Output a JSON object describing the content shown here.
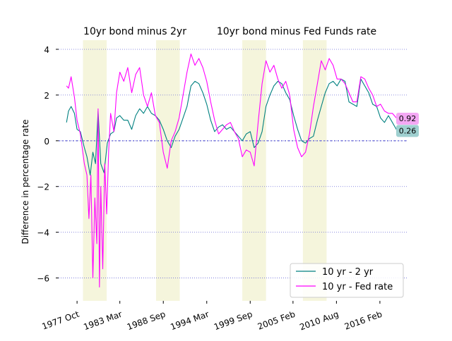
{
  "chart_data": {
    "type": "line",
    "title_left": "10yr bond minus 2yr",
    "title_right": "10yr bond minus Fed Funds rate",
    "xlabel": "",
    "ylabel": "Difference in percentage rate",
    "xlim": [
      "1975-06",
      "2019-09"
    ],
    "ylim": [
      -7,
      4.4
    ],
    "grid": "horizontal dotted",
    "legend_placement": "lower-right",
    "x_ticks": [
      "1977-10",
      "1983-03",
      "1988-09",
      "1994-03",
      "1999-09",
      "2005-02",
      "2010-08",
      "2016-02"
    ],
    "x_tick_labels": [
      "1977 Oct",
      "1983 Mar",
      "1988 Sep",
      "1994 Mar",
      "1999 Sep",
      "2005 Feb",
      "2010 Aug",
      "2016 Feb"
    ],
    "y_ticks": [
      4,
      2,
      0,
      -2,
      -4,
      -6
    ],
    "y_tick_labels": [
      "4",
      "2",
      "0",
      "−2",
      "−4",
      "−6"
    ],
    "shaded_periods": [
      [
        "1978-07",
        "1981-07"
      ],
      [
        "1987-10",
        "1990-10"
      ],
      [
        "1998-09",
        "2001-09"
      ],
      [
        "2006-05",
        "2009-05"
      ]
    ],
    "zero_line": 0,
    "colors": {
      "s1": "#008080",
      "s2": "#ff00ff",
      "shade": "#f5f5dc",
      "grid": "#6a6ad6"
    },
    "series": [
      {
        "name": "10 yr - 2 yr",
        "color": "#008080",
        "x": [
          "1976-06",
          "1976-09",
          "1977-01",
          "1977-06",
          "1977-10",
          "1978-03",
          "1978-09",
          "1979-01",
          "1979-06",
          "1979-10",
          "1980-02",
          "1980-06",
          "1980-10",
          "1981-03",
          "1981-08",
          "1982-01",
          "1982-06",
          "1982-10",
          "1983-03",
          "1983-09",
          "1984-03",
          "1984-09",
          "1985-03",
          "1985-09",
          "1986-03",
          "1986-09",
          "1987-03",
          "1987-09",
          "1988-03",
          "1988-09",
          "1989-03",
          "1989-09",
          "1990-03",
          "1990-09",
          "1991-03",
          "1991-09",
          "1992-03",
          "1992-09",
          "1993-03",
          "1993-09",
          "1994-03",
          "1994-09",
          "1995-03",
          "1995-09",
          "1996-03",
          "1996-09",
          "1997-03",
          "1997-09",
          "1998-03",
          "1998-09",
          "1999-03",
          "1999-09",
          "2000-03",
          "2000-09",
          "2001-03",
          "2001-09",
          "2002-03",
          "2002-09",
          "2003-03",
          "2003-09",
          "2004-03",
          "2004-09",
          "2005-03",
          "2005-09",
          "2006-03",
          "2006-09",
          "2007-03",
          "2007-09",
          "2008-03",
          "2008-09",
          "2009-03",
          "2009-09",
          "2010-03",
          "2010-09",
          "2011-03",
          "2011-09",
          "2012-03",
          "2012-09",
          "2013-03",
          "2013-09",
          "2014-03",
          "2014-09",
          "2015-03",
          "2015-09",
          "2016-03",
          "2016-09",
          "2017-03",
          "2017-09",
          "2018-03",
          "2018-06"
        ],
        "values": [
          0.8,
          1.3,
          1.5,
          1.2,
          0.5,
          0.4,
          -0.3,
          -0.7,
          -1.5,
          -0.5,
          -1.0,
          1.3,
          -1.0,
          -1.4,
          -0.1,
          0.3,
          0.4,
          1.0,
          1.1,
          0.9,
          0.9,
          0.5,
          1.1,
          1.4,
          1.2,
          1.5,
          1.2,
          1.1,
          0.9,
          0.5,
          0.0,
          -0.3,
          0.2,
          0.5,
          1.0,
          1.5,
          2.4,
          2.6,
          2.5,
          2.1,
          1.6,
          0.9,
          0.4,
          0.6,
          0.7,
          0.5,
          0.6,
          0.4,
          0.2,
          0.0,
          0.3,
          0.4,
          -0.3,
          -0.1,
          0.4,
          1.5,
          2.0,
          2.4,
          2.6,
          2.5,
          2.1,
          1.8,
          1.1,
          0.5,
          0.0,
          -0.1,
          0.1,
          0.2,
          0.9,
          1.5,
          2.1,
          2.5,
          2.6,
          2.4,
          2.7,
          2.6,
          1.7,
          1.6,
          1.5,
          2.7,
          2.4,
          2.1,
          1.6,
          1.5,
          1.0,
          0.8,
          1.1,
          0.8,
          0.5,
          0.26
        ]
      },
      {
        "name": "10 yr - Fed rate",
        "color": "#ff00ff",
        "x": [
          "1976-06",
          "1976-09",
          "1977-01",
          "1977-06",
          "1977-10",
          "1978-03",
          "1978-09",
          "1979-01",
          "1979-04",
          "1979-07",
          "1979-10",
          "1980-01",
          "1980-04",
          "1980-06",
          "1980-08",
          "1980-10",
          "1981-01",
          "1981-04",
          "1981-07",
          "1981-10",
          "1982-01",
          "1982-06",
          "1982-10",
          "1983-03",
          "1983-09",
          "1984-03",
          "1984-09",
          "1985-03",
          "1985-09",
          "1986-03",
          "1986-09",
          "1987-03",
          "1987-09",
          "1988-03",
          "1988-09",
          "1989-03",
          "1989-09",
          "1990-03",
          "1990-09",
          "1991-03",
          "1991-09",
          "1992-03",
          "1992-09",
          "1993-03",
          "1993-09",
          "1994-03",
          "1994-09",
          "1995-03",
          "1995-09",
          "1996-03",
          "1996-09",
          "1997-03",
          "1997-09",
          "1998-03",
          "1998-09",
          "1999-03",
          "1999-09",
          "2000-03",
          "2000-09",
          "2001-03",
          "2001-09",
          "2002-03",
          "2002-09",
          "2003-03",
          "2003-09",
          "2004-03",
          "2004-09",
          "2005-03",
          "2005-09",
          "2006-03",
          "2006-09",
          "2007-03",
          "2007-09",
          "2008-03",
          "2008-09",
          "2009-03",
          "2009-09",
          "2010-03",
          "2010-09",
          "2011-03",
          "2011-09",
          "2012-03",
          "2012-09",
          "2013-03",
          "2013-09",
          "2014-03",
          "2014-09",
          "2015-03",
          "2015-09",
          "2016-03",
          "2016-09",
          "2017-03",
          "2017-09",
          "2018-03",
          "2018-06"
        ],
        "values": [
          2.4,
          2.3,
          2.8,
          1.9,
          0.9,
          0.3,
          -1.0,
          -1.5,
          -3.4,
          -1.5,
          -6.0,
          -2.5,
          -4.5,
          1.4,
          -6.4,
          -2.0,
          -5.6,
          -1.0,
          -3.2,
          -0.5,
          1.2,
          0.4,
          2.1,
          3.0,
          2.6,
          3.2,
          2.1,
          2.9,
          3.2,
          2.0,
          1.5,
          2.1,
          1.1,
          0.8,
          -0.5,
          -1.2,
          0.0,
          0.4,
          1.0,
          2.0,
          3.0,
          3.8,
          3.3,
          3.6,
          3.2,
          2.6,
          1.7,
          0.9,
          0.3,
          0.5,
          0.7,
          0.8,
          0.4,
          0.1,
          -0.7,
          -0.4,
          -0.5,
          -1.1,
          0.8,
          2.5,
          3.5,
          3.0,
          3.3,
          2.7,
          2.3,
          2.6,
          2.0,
          0.5,
          -0.3,
          -0.7,
          -0.5,
          0.3,
          1.5,
          2.5,
          3.5,
          3.1,
          3.6,
          3.3,
          2.7,
          2.7,
          2.5,
          2.1,
          1.7,
          1.7,
          2.8,
          2.7,
          2.3,
          2.0,
          1.5,
          1.6,
          1.3,
          1.2,
          1.2,
          1.0,
          0.92
        ]
      }
    ],
    "end_labels": [
      "0.92",
      "0.26"
    ]
  }
}
